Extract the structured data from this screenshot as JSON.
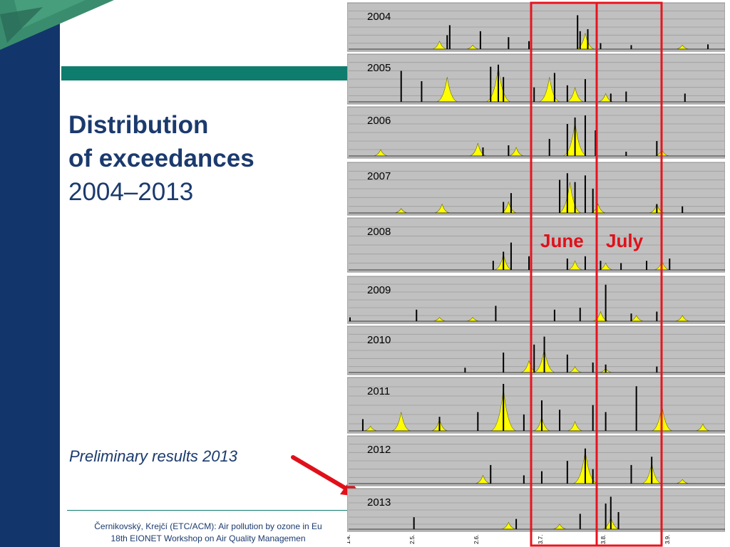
{
  "slide": {
    "title_line1": "Distribution",
    "title_line2": "of exceedances",
    "title_years": "2004–2013",
    "subtitle": "Preliminary results 2013",
    "footer_line1": "Černikovský, Krejčí (ETC/ACM): Air pollution by ozone in Eu",
    "footer_line2": "18th EIONET Workshop on Air Quality Managemen"
  },
  "colors": {
    "sidebar": "#12366b",
    "accent_teal": "#0f7d6e",
    "text": "#1b3a6e",
    "highlight": "#e0101a",
    "panel_bg": "#c0c0c0",
    "area_fill": "#ffff00"
  },
  "chart_data": {
    "type": "bar",
    "description_units": "daily ozone exceedances (relative, no y-axis values printed)",
    "x_tick_labels": [
      "1.4.",
      "2.5.",
      "2.6.",
      "3.7.",
      "3.8.",
      "3.9."
    ],
    "highlights": [
      {
        "label": "June"
      },
      {
        "label": "July"
      }
    ],
    "panels": [
      {
        "year": "2004",
        "bars": [
          [
            0.38,
            0.35
          ],
          [
            0.39,
            0.6
          ],
          [
            0.51,
            0.45
          ],
          [
            0.62,
            0.3
          ],
          [
            0.7,
            0.2
          ],
          [
            0.89,
            0.85
          ],
          [
            0.9,
            0.45
          ],
          [
            0.93,
            0.5
          ],
          [
            0.98,
            0.15
          ],
          [
            1.1,
            0.1
          ],
          [
            1.4,
            0.12
          ]
        ],
        "areas": [
          [
            0.35,
            0.2
          ],
          [
            0.48,
            0.1
          ],
          [
            0.92,
            0.4
          ],
          [
            1.3,
            0.1
          ]
        ]
      },
      {
        "year": "2005",
        "bars": [
          [
            0.2,
            0.75
          ],
          [
            0.28,
            0.5
          ],
          [
            0.55,
            0.85
          ],
          [
            0.58,
            0.9
          ],
          [
            0.6,
            0.6
          ],
          [
            0.72,
            0.35
          ],
          [
            0.8,
            0.7
          ],
          [
            0.85,
            0.4
          ],
          [
            0.92,
            0.55
          ],
          [
            1.02,
            0.2
          ],
          [
            1.08,
            0.25
          ],
          [
            1.22,
            0.35
          ],
          [
            1.31,
            0.2
          ]
        ],
        "areas": [
          [
            0.38,
            0.6
          ],
          [
            0.58,
            0.85
          ],
          [
            0.78,
            0.6
          ],
          [
            0.88,
            0.35
          ],
          [
            1.0,
            0.2
          ]
        ]
      },
      {
        "year": "2006",
        "bars": [
          [
            0.52,
            0.2
          ],
          [
            0.62,
            0.25
          ],
          [
            0.78,
            0.4
          ],
          [
            0.85,
            0.75
          ],
          [
            0.88,
            0.9
          ],
          [
            0.92,
            0.95
          ],
          [
            0.96,
            0.6
          ],
          [
            1.08,
            0.1
          ],
          [
            1.2,
            0.35
          ]
        ],
        "areas": [
          [
            0.12,
            0.15
          ],
          [
            0.5,
            0.3
          ],
          [
            0.65,
            0.2
          ],
          [
            0.88,
            0.8
          ],
          [
            1.22,
            0.15
          ]
        ]
      },
      {
        "year": "2007",
        "bars": [
          [
            0.6,
            0.25
          ],
          [
            0.63,
            0.45
          ],
          [
            0.82,
            0.75
          ],
          [
            0.85,
            0.9
          ],
          [
            0.88,
            0.7
          ],
          [
            0.92,
            0.85
          ],
          [
            0.95,
            0.55
          ],
          [
            1.2,
            0.2
          ],
          [
            1.3,
            0.15
          ]
        ],
        "areas": [
          [
            0.2,
            0.1
          ],
          [
            0.36,
            0.2
          ],
          [
            0.62,
            0.25
          ],
          [
            0.86,
            0.7
          ],
          [
            0.97,
            0.2
          ],
          [
            1.2,
            0.2
          ]
        ]
      },
      {
        "year": "2008",
        "bars": [
          [
            0.56,
            0.2
          ],
          [
            0.6,
            0.4
          ],
          [
            0.63,
            0.6
          ],
          [
            0.7,
            0.3
          ],
          [
            0.85,
            0.25
          ],
          [
            0.92,
            0.3
          ],
          [
            0.98,
            0.2
          ],
          [
            1.06,
            0.15
          ],
          [
            1.16,
            0.2
          ],
          [
            1.25,
            0.25
          ]
        ],
        "areas": [
          [
            0.6,
            0.35
          ],
          [
            0.88,
            0.2
          ],
          [
            1.0,
            0.15
          ],
          [
            1.22,
            0.2
          ]
        ]
      },
      {
        "year": "2009",
        "bars": [
          [
            0.0,
            0.1
          ],
          [
            0.26,
            0.3
          ],
          [
            0.57,
            0.4
          ],
          [
            0.8,
            0.3
          ],
          [
            0.9,
            0.35
          ],
          [
            1.0,
            0.95
          ],
          [
            1.1,
            0.2
          ],
          [
            1.2,
            0.25
          ]
        ],
        "areas": [
          [
            0.35,
            0.1
          ],
          [
            0.48,
            0.1
          ],
          [
            0.98,
            0.25
          ],
          [
            1.12,
            0.15
          ],
          [
            1.3,
            0.15
          ]
        ]
      },
      {
        "year": "2010",
        "bars": [
          [
            0.45,
            0.12
          ],
          [
            0.6,
            0.5
          ],
          [
            0.72,
            0.7
          ],
          [
            0.76,
            0.9
          ],
          [
            0.85,
            0.45
          ],
          [
            0.95,
            0.25
          ],
          [
            1.0,
            0.2
          ],
          [
            1.2,
            0.15
          ]
        ],
        "areas": [
          [
            0.7,
            0.3
          ],
          [
            0.76,
            0.6
          ],
          [
            0.88,
            0.15
          ],
          [
            1.0,
            0.1
          ]
        ]
      },
      {
        "year": "2011",
        "bars": [
          [
            0.05,
            0.25
          ],
          [
            0.35,
            0.3
          ],
          [
            0.5,
            0.4
          ],
          [
            0.6,
            1.0
          ],
          [
            0.68,
            0.35
          ],
          [
            0.75,
            0.65
          ],
          [
            0.82,
            0.45
          ],
          [
            0.95,
            0.55
          ],
          [
            1.0,
            0.4
          ],
          [
            1.12,
            0.95
          ],
          [
            1.22,
            0.65
          ]
        ],
        "areas": [
          [
            0.08,
            0.1
          ],
          [
            0.2,
            0.4
          ],
          [
            0.35,
            0.25
          ],
          [
            0.6,
            0.9
          ],
          [
            0.75,
            0.3
          ],
          [
            0.88,
            0.2
          ],
          [
            1.22,
            0.55
          ],
          [
            1.38,
            0.15
          ]
        ]
      },
      {
        "year": "2012",
        "bars": [
          [
            0.55,
            0.45
          ],
          [
            0.68,
            0.2
          ],
          [
            0.75,
            0.3
          ],
          [
            0.85,
            0.55
          ],
          [
            0.92,
            0.85
          ],
          [
            0.95,
            0.35
          ],
          [
            1.1,
            0.45
          ],
          [
            1.18,
            0.65
          ],
          [
            1.22,
            0.25
          ]
        ],
        "areas": [
          [
            0.52,
            0.2
          ],
          [
            0.92,
            0.8
          ],
          [
            1.18,
            0.5
          ],
          [
            1.3,
            0.1
          ]
        ]
      },
      {
        "year": "2013",
        "bars": [
          [
            0.25,
            0.35
          ],
          [
            0.65,
            0.3
          ],
          [
            0.9,
            0.45
          ],
          [
            1.0,
            0.75
          ],
          [
            1.02,
            0.95
          ],
          [
            1.05,
            0.5
          ]
        ],
        "areas": [
          [
            0.62,
            0.2
          ],
          [
            0.82,
            0.15
          ],
          [
            1.02,
            0.35
          ]
        ]
      }
    ]
  }
}
